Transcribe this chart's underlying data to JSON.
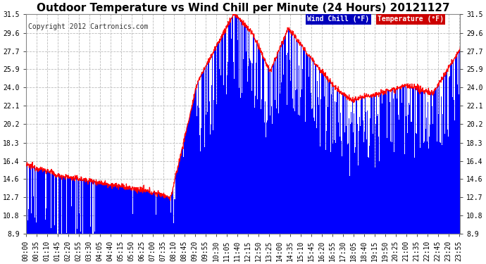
{
  "title": "Outdoor Temperature vs Wind Chill per Minute (24 Hours) 20121127",
  "copyright": "Copyright 2012 Cartronics.com",
  "ylabel_values": [
    8.9,
    10.8,
    12.7,
    14.6,
    16.4,
    18.3,
    20.2,
    22.1,
    24.0,
    25.9,
    27.7,
    29.6,
    31.5
  ],
  "ylim": [
    8.9,
    31.5
  ],
  "bg_color": "#ffffff",
  "plot_bg_color": "#ffffff",
  "wind_chill_color": "#0000ff",
  "temp_color": "#ff0000",
  "title_fontsize": 11,
  "copyright_fontsize": 7,
  "axis_fontsize": 7,
  "legend_wind_label": "Wind Chill (°F)",
  "legend_temp_label": "Temperature (°F)",
  "legend_wind_bg": "#0000bb",
  "legend_temp_bg": "#cc0000",
  "grid_color": "#bbbbbb",
  "tick_interval_minutes": 35
}
